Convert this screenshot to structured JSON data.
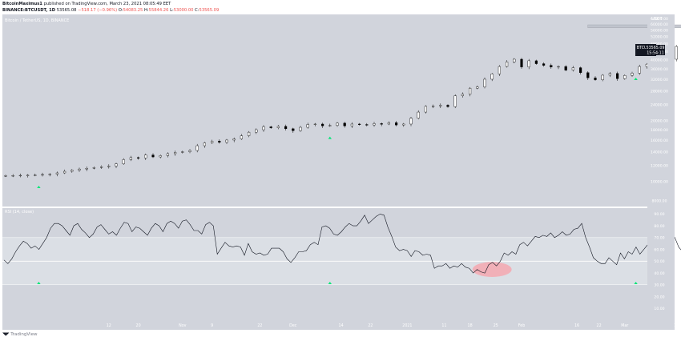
{
  "header": {
    "author": "BitcoinMaximus1",
    "publish_text": "published on TradingView.com, March 23, 2021 08:05:49 EET",
    "symbol": "BINANCE:BTCUSDT, 1D",
    "last": "53565.08",
    "change": "−518.17 (−0.96%)",
    "o": "O:",
    "o_val": "54083.25",
    "h": "H:",
    "h_val": "55844.26",
    "l": "L:",
    "l_val": "53000.00",
    "c": "C:",
    "c_val": "53565.09"
  },
  "price_panel": {
    "legend": "Bitcoin / TetherUS, 1D, BINANCE",
    "currency": "USDT",
    "price_tag": "53565.09",
    "symbol_tag": "BTCUSDT",
    "countdown": "15:54:11"
  },
  "rsi_panel": {
    "legend": "RSI (14, close)"
  },
  "footer": {
    "brand": "TradingView"
  },
  "colors": {
    "panel_bg": "#d1d4dc",
    "rsi_band": "#dde0e6",
    "candle_up": "#ffffff",
    "candle_down": "#000000",
    "marker": "#00e676",
    "highlight": "#f8a0a8",
    "resistance": "#bfc3cc"
  },
  "chart_data": [
    {
      "type": "candlestick",
      "title": "Bitcoin / TetherUS, 1D, BINANCE",
      "y_scale": "log",
      "ylim": [
        7500,
        67000
      ],
      "y_ticks": [
        8000,
        10000,
        12000,
        14000,
        16000,
        18000,
        20000,
        24000,
        28000,
        32000,
        36000,
        40000,
        44000,
        48000,
        52000,
        56000,
        60000,
        64000
      ],
      "x_ticks": [
        "12",
        "20",
        "Nov",
        "9",
        "22",
        "Dec",
        "14",
        "22",
        "2021",
        "11",
        "18",
        "25",
        "Feb",
        "16",
        "22",
        "Mar",
        "15",
        "22",
        "Apr"
      ],
      "series": [
        {
          "values": [
            10660,
            10680,
            10700,
            10720,
            10740,
            10800,
            10850,
            11000,
            11200,
            11350,
            11500,
            11600,
            11700,
            11800,
            11900,
            12200,
            12800,
            13100,
            13050,
            13500,
            13200,
            13400,
            13700,
            13900,
            14000,
            14200,
            15000,
            15500,
            15800,
            15600,
            16000,
            16200,
            16800,
            17500,
            18000,
            18600,
            18400,
            18700,
            18200,
            17800,
            18500,
            19100,
            19200,
            18800,
            18900,
            19400,
            18800,
            19200,
            19100,
            19000,
            19300,
            19200,
            19500,
            19000,
            19200,
            20500,
            22000,
            23500,
            23600,
            23800,
            23400,
            26500,
            27000,
            28900,
            29300,
            32000,
            34000,
            37000,
            39000,
            40200,
            36800,
            39500,
            38200,
            37500,
            36800,
            37000,
            35500,
            36500,
            34500,
            32500,
            31800,
            33500,
            34200,
            32200,
            33400,
            34300,
            37000,
            38000,
            39000,
            39800,
            40200,
            46500,
            46300,
            47000,
            48000,
            47500,
            48600,
            51000,
            52500,
            55900,
            56000,
            57400,
            54500,
            48900,
            49800,
            47400,
            46600,
            44700,
            49000,
            48000,
            49500,
            48500,
            50400,
            51000,
            55600,
            57800,
            56200,
            61100,
            59000,
            56000,
            57700,
            58300,
            56400,
            57200,
            56000,
            54083,
            53565
          ]
        }
      ],
      "markers": [
        {
          "date": "Sep 23, 2020"
        },
        {
          "date": "Dec 11, 2020"
        },
        {
          "date": "Mar 4, 2021"
        }
      ],
      "resistance_zone": [
        57500,
        59500
      ]
    },
    {
      "type": "line",
      "title": "RSI (14, close)",
      "ylim": [
        0,
        95
      ],
      "y_ticks": [
        90,
        80,
        70,
        60,
        50,
        40,
        30,
        20,
        10
      ],
      "levels": [
        30,
        50,
        70
      ],
      "series": [
        {
          "name": "RSI (14, close)",
          "values": [
            51,
            48,
            52,
            58,
            63,
            67,
            65,
            61,
            63,
            60,
            65,
            70,
            78,
            82,
            82,
            80,
            76,
            72,
            80,
            82,
            77,
            74,
            70,
            73,
            79,
            81,
            77,
            73,
            75,
            72,
            78,
            83,
            82,
            75,
            79,
            78,
            75,
            72,
            78,
            82,
            80,
            75,
            82,
            84,
            82,
            78,
            84,
            85,
            81,
            76,
            76,
            73,
            81,
            83,
            80,
            56,
            61,
            66,
            63,
            62,
            63,
            62,
            55,
            65,
            58,
            56,
            57,
            55,
            56,
            61,
            61,
            61,
            58,
            52,
            49,
            53,
            58,
            58,
            59,
            64,
            66,
            64,
            79,
            80,
            78,
            73,
            72,
            75,
            79,
            82,
            80,
            80,
            84,
            89,
            82,
            85,
            88,
            90,
            89,
            79,
            71,
            62,
            59,
            60,
            59,
            54,
            59,
            58,
            55,
            56,
            55,
            44,
            46,
            46,
            48,
            44,
            46,
            45,
            48,
            45,
            44,
            40,
            43,
            41,
            40,
            47,
            49,
            46,
            50,
            57,
            55,
            58,
            56,
            64,
            66,
            63,
            67,
            71,
            70,
            72,
            71,
            74,
            70,
            72,
            75,
            72,
            73,
            77,
            78,
            82,
            70,
            62,
            53,
            50,
            48,
            48,
            53,
            50,
            47,
            57,
            52,
            58,
            56,
            62,
            56,
            60,
            64,
            68,
            70,
            73,
            68,
            70,
            74,
            70,
            62,
            58,
            60,
            61,
            57,
            55,
            53,
            50
          ]
        }
      ],
      "highlight_zone": {
        "x_range": [
          "Jan 20, 2021",
          "Jan 28, 2021"
        ],
        "y_range": [
          38,
          48
        ]
      },
      "markers": [
        {
          "date": "Sep 23, 2020"
        },
        {
          "date": "Dec 11, 2020"
        },
        {
          "date": "Mar 4, 2021"
        }
      ]
    }
  ]
}
